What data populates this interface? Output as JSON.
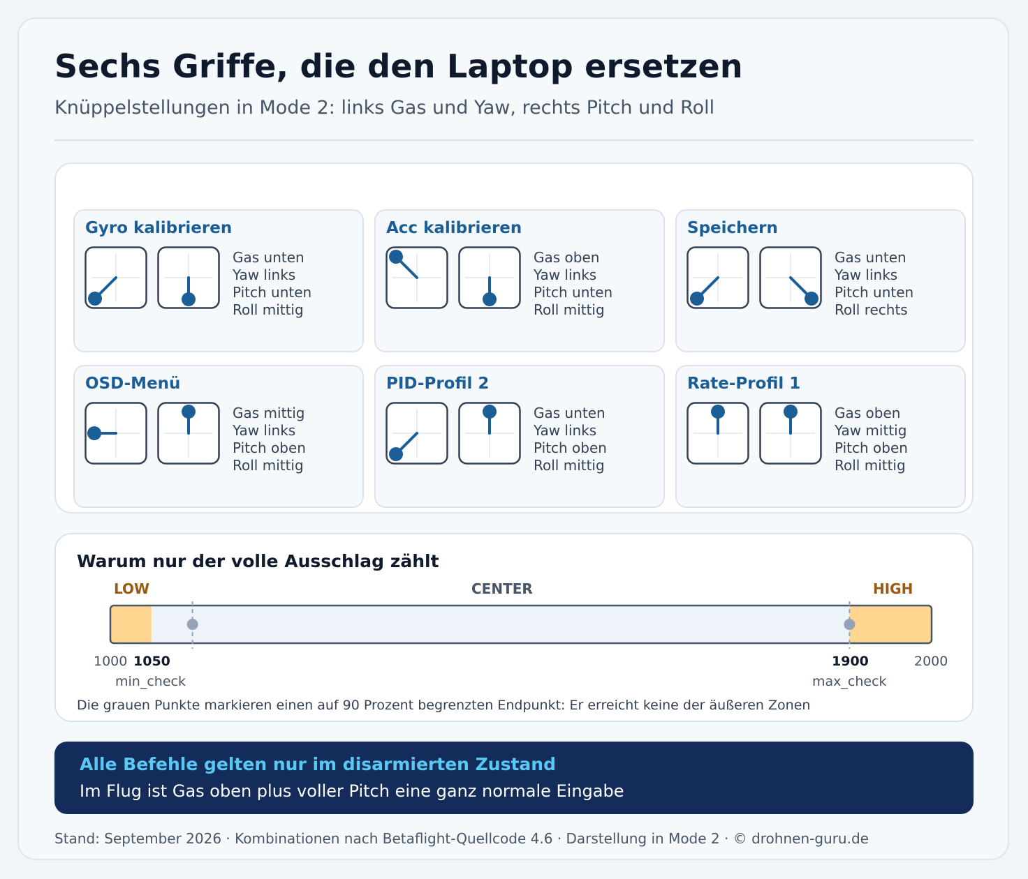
{
  "header": {
    "title": "Sechs Griffe, die den Laptop ersetzen",
    "subtitle": "Knüppelstellungen in Mode 2: links Gas und Yaw, rechts Pitch und Roll"
  },
  "colors": {
    "accent_blue": "#1b5e96",
    "zone_orange": "#ffd68f",
    "label_brown": "#9a5a12",
    "banner_bg": "#142c5a",
    "banner_title": "#5ac8f5"
  },
  "commands": [
    {
      "title": "Gyro kalibrieren",
      "left_stick": "down-left",
      "right_stick": "down",
      "lines": [
        "Gas unten",
        "Yaw links",
        "Pitch unten",
        "Roll mittig"
      ]
    },
    {
      "title": "Acc kalibrieren",
      "left_stick": "up-left",
      "right_stick": "down",
      "lines": [
        "Gas oben",
        "Yaw links",
        "Pitch unten",
        "Roll mittig"
      ]
    },
    {
      "title": "Speichern",
      "left_stick": "down-left",
      "right_stick": "down-right",
      "lines": [
        "Gas unten",
        "Yaw links",
        "Pitch unten",
        "Roll rechts"
      ]
    },
    {
      "title": "OSD-Menü",
      "left_stick": "left",
      "right_stick": "up",
      "lines": [
        "Gas mittig",
        "Yaw links",
        "Pitch oben",
        "Roll mittig"
      ]
    },
    {
      "title": "PID-Profil 2",
      "left_stick": "down-left",
      "right_stick": "up",
      "lines": [
        "Gas unten",
        "Yaw links",
        "Pitch oben",
        "Roll mittig"
      ]
    },
    {
      "title": "Rate-Profil 1",
      "left_stick": "up",
      "right_stick": "up",
      "lines": [
        "Gas oben",
        "Yaw mittig",
        "Pitch oben",
        "Roll mittig"
      ]
    }
  ],
  "throttle": {
    "title": "Warum nur der volle Ausschlag zählt",
    "zones": {
      "low": "LOW",
      "center": "CENTER",
      "high": "HIGH"
    },
    "range": [
      1000,
      2000
    ],
    "low_zone_end": 1050,
    "high_zone_start": 1900,
    "limited_endpoints": [
      1100,
      1900
    ],
    "ticks": {
      "min": "1000",
      "low": "1050",
      "high": "1900",
      "max": "2000",
      "min_check": "min_check",
      "max_check": "max_check"
    },
    "note": "Die grauen Punkte markieren einen auf 90 Prozent begrenzten Endpunkt: Er erreicht keine der äußeren Zonen"
  },
  "banner": {
    "title": "Alle Befehle gelten nur im disarmierten Zustand",
    "text": "Im Flug ist Gas oben plus voller Pitch eine ganz normale Eingabe"
  },
  "footer": "Stand: September 2026 · Kombinationen nach Betaflight-Quellcode 4.6 · Darstellung in Mode 2 · © drohnen-guru.de"
}
